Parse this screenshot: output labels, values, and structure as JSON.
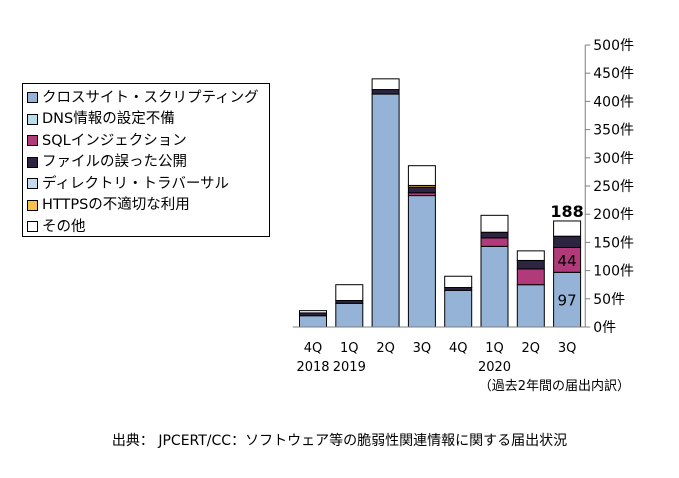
{
  "chart_data": {
    "type": "bar",
    "stacked": true,
    "categories": [
      "4Q",
      "1Q",
      "2Q",
      "3Q",
      "4Q",
      "1Q",
      "2Q",
      "3Q"
    ],
    "year_labels": [
      "2018",
      "2019",
      "",
      "",
      "",
      "2020",
      "",
      ""
    ],
    "period_note": "（過去2年間の届出内訳）",
    "y_ticks": [
      "0件",
      "50件",
      "100件",
      "150件",
      "200件",
      "250件",
      "300件",
      "350件",
      "400件",
      "450件",
      "500件"
    ],
    "ylim": [
      0,
      500
    ],
    "grid": false,
    "legend_position": "left",
    "series": [
      {
        "name": "クロスサイト・スクリプティング",
        "color": "#95b3d7",
        "values": [
          20,
          42,
          413,
          233,
          65,
          143,
          75,
          97
        ]
      },
      {
        "name": "DNS情報の設定不備",
        "color": "#b7dee8",
        "values": [
          0,
          0,
          0,
          0,
          0,
          0,
          0,
          0
        ]
      },
      {
        "name": "SQLインジェクション",
        "color": "#b03a7a",
        "values": [
          0,
          0,
          0,
          5,
          0,
          15,
          28,
          44
        ]
      },
      {
        "name": "ファイルの誤った公開",
        "color": "#2c2440",
        "values": [
          5,
          5,
          8,
          10,
          5,
          10,
          15,
          20
        ]
      },
      {
        "name": "ディレクトリ・トラバーサル",
        "color": "#c6d9f0",
        "values": [
          0,
          0,
          0,
          0,
          0,
          0,
          0,
          0
        ]
      },
      {
        "name": "HTTPSの不適切な利用",
        "color": "#f9c04c",
        "values": [
          0,
          0,
          0,
          3,
          0,
          0,
          0,
          0
        ]
      },
      {
        "name": "その他",
        "color": "#ffffff",
        "values": [
          4,
          28,
          19,
          35,
          20,
          30,
          17,
          27
        ]
      }
    ],
    "annotations": [
      {
        "category_index": 7,
        "series_index": 0,
        "text": "97"
      },
      {
        "category_index": 7,
        "series_index": 2,
        "text": "44"
      },
      {
        "category_index": 7,
        "series_index": "total",
        "text": "188"
      }
    ]
  },
  "source": "出典： JPCERT/CC：ソフトウェア等の脆弱性関連情報に関する届出状況"
}
